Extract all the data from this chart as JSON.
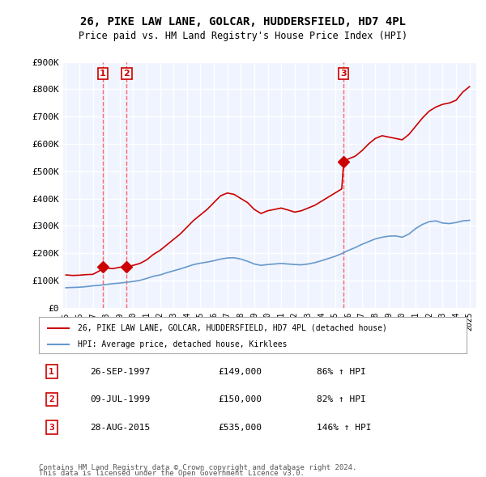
{
  "title": "26, PIKE LAW LANE, GOLCAR, HUDDERSFIELD, HD7 4PL",
  "subtitle": "Price paid vs. HM Land Registry's House Price Index (HPI)",
  "hpi_label": "HPI: Average price, detached house, Kirklees",
  "property_label": "26, PIKE LAW LANE, GOLCAR, HUDDERSFIELD, HD7 4PL (detached house)",
  "footer1": "Contains HM Land Registry data © Crown copyright and database right 2024.",
  "footer2": "This data is licensed under the Open Government Licence v3.0.",
  "sales": [
    {
      "num": 1,
      "date": "26-SEP-1997",
      "price": 149000,
      "year": 1997.73,
      "pct": "86%",
      "dir": "↑"
    },
    {
      "num": 2,
      "date": "09-JUL-1999",
      "price": 150000,
      "year": 1999.52,
      "pct": "82%",
      "dir": "↑"
    },
    {
      "num": 3,
      "date": "28-AUG-2015",
      "price": 535000,
      "year": 2015.65,
      "pct": "146%",
      "dir": "↑"
    }
  ],
  "red_line_x": [
    1995,
    1995.5,
    1996,
    1996.5,
    1997,
    1997.5,
    1997.73,
    1998,
    1998.5,
    1999,
    1999.52,
    2000,
    2000.5,
    2001,
    2001.5,
    2002,
    2002.5,
    2003,
    2003.5,
    2004,
    2004.5,
    2005,
    2005.5,
    2006,
    2006.5,
    2007,
    2007.5,
    2008,
    2008.5,
    2009,
    2009.5,
    2010,
    2010.5,
    2011,
    2011.5,
    2012,
    2012.5,
    2013,
    2013.5,
    2014,
    2014.5,
    2015,
    2015.5,
    2015.65,
    2016,
    2016.5,
    2017,
    2017.5,
    2018,
    2018.5,
    2019,
    2019.5,
    2020,
    2020.5,
    2021,
    2021.5,
    2022,
    2022.5,
    2023,
    2023.5,
    2024,
    2024.5,
    2025
  ],
  "red_line_y": [
    120000,
    118000,
    119000,
    121000,
    122000,
    135000,
    149000,
    145000,
    143000,
    148000,
    150000,
    155000,
    162000,
    175000,
    195000,
    210000,
    230000,
    250000,
    270000,
    295000,
    320000,
    340000,
    360000,
    385000,
    410000,
    420000,
    415000,
    400000,
    385000,
    360000,
    345000,
    355000,
    360000,
    365000,
    358000,
    350000,
    355000,
    365000,
    375000,
    390000,
    405000,
    420000,
    435000,
    535000,
    545000,
    555000,
    575000,
    600000,
    620000,
    630000,
    625000,
    620000,
    615000,
    635000,
    665000,
    695000,
    720000,
    735000,
    745000,
    750000,
    760000,
    790000,
    810000
  ],
  "blue_line_x": [
    1995,
    1995.5,
    1996,
    1996.5,
    1997,
    1997.5,
    1998,
    1998.5,
    1999,
    1999.5,
    2000,
    2000.5,
    2001,
    2001.5,
    2002,
    2002.5,
    2003,
    2003.5,
    2004,
    2004.5,
    2005,
    2005.5,
    2006,
    2006.5,
    2007,
    2007.5,
    2008,
    2008.5,
    2009,
    2009.5,
    2010,
    2010.5,
    2011,
    2011.5,
    2012,
    2012.5,
    2013,
    2013.5,
    2014,
    2014.5,
    2015,
    2015.5,
    2016,
    2016.5,
    2017,
    2017.5,
    2018,
    2018.5,
    2019,
    2019.5,
    2020,
    2020.5,
    2021,
    2021.5,
    2022,
    2022.5,
    2023,
    2023.5,
    2024,
    2024.5,
    2025
  ],
  "blue_line_y": [
    73000,
    74000,
    75000,
    77000,
    80000,
    82000,
    85000,
    88000,
    90000,
    93000,
    96000,
    100000,
    107000,
    115000,
    120000,
    128000,
    135000,
    142000,
    150000,
    158000,
    163000,
    167000,
    172000,
    178000,
    182000,
    183000,
    178000,
    170000,
    160000,
    155000,
    158000,
    160000,
    162000,
    160000,
    158000,
    157000,
    160000,
    165000,
    172000,
    180000,
    188000,
    198000,
    210000,
    220000,
    232000,
    242000,
    252000,
    258000,
    262000,
    263000,
    258000,
    270000,
    290000,
    305000,
    315000,
    318000,
    310000,
    308000,
    312000,
    318000,
    320000
  ],
  "ylim": [
    0,
    900000
  ],
  "xlim": [
    1994.8,
    2025.5
  ],
  "yticks": [
    0,
    100000,
    200000,
    300000,
    400000,
    500000,
    600000,
    700000,
    800000,
    900000
  ],
  "ytick_labels": [
    "£0",
    "£100K",
    "£200K",
    "£300K",
    "£400K",
    "£500K",
    "£600K",
    "£700K",
    "£800K",
    "£900K"
  ],
  "xticks": [
    1995,
    1996,
    1997,
    1998,
    1999,
    2000,
    2001,
    2002,
    2003,
    2004,
    2005,
    2006,
    2007,
    2008,
    2009,
    2010,
    2011,
    2012,
    2013,
    2014,
    2015,
    2016,
    2017,
    2018,
    2019,
    2020,
    2021,
    2022,
    2023,
    2024,
    2025
  ],
  "bg_color": "#ffffff",
  "plot_bg_color": "#f0f4ff",
  "grid_color": "#ffffff",
  "red_color": "#cc0000",
  "blue_color": "#6699cc",
  "marker_color": "#cc0000",
  "dashed_color": "#ff6666",
  "label_num_color": "#cc0000",
  "label_num_bg": "#ffffff"
}
